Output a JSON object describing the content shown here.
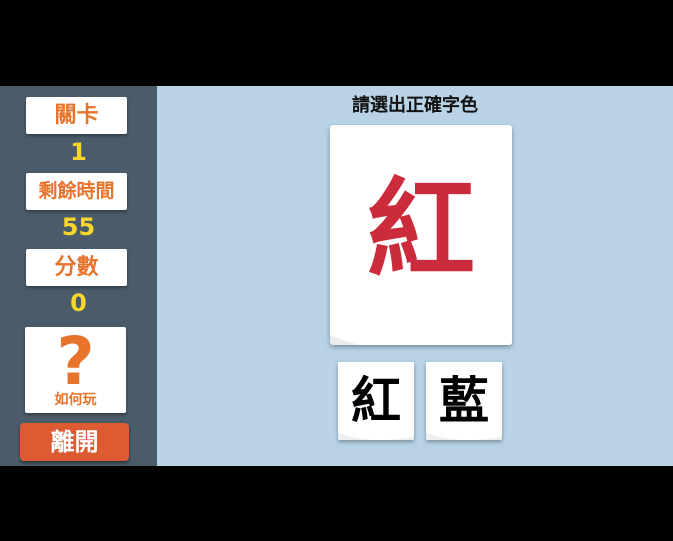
{
  "sidebar": {
    "level_label": "關卡",
    "level_value": "1",
    "time_label": "剩餘時間",
    "time_value": "55",
    "score_label": "分數",
    "score_value": "0",
    "howto_symbol": "?",
    "howto_label": "如何玩",
    "leave_label": "離開"
  },
  "main": {
    "instruction": "請選出正確字色",
    "card_word": "紅",
    "card_word_color": "#cc2b3b",
    "choices": [
      {
        "label": "紅"
      },
      {
        "label": "藍"
      }
    ]
  },
  "colors": {
    "background": "#b8d3e6",
    "sidebar": "#4a5c6a",
    "accent_orange": "#e8732b",
    "value_yellow": "#f6d52c",
    "leave_button": "#dd5b33"
  }
}
